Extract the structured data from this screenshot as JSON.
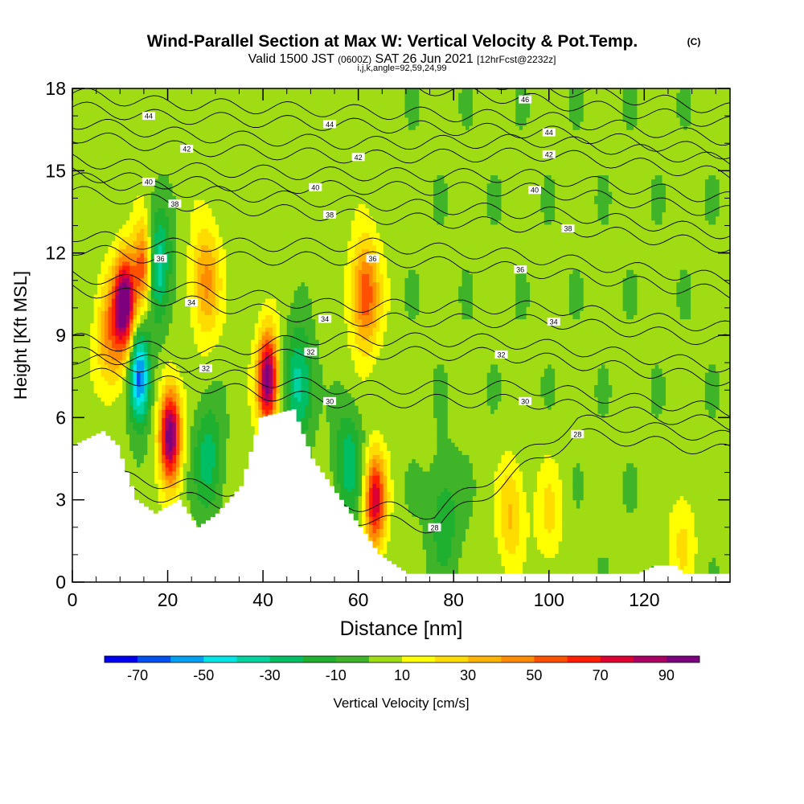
{
  "header": {
    "title": "Wind-Parallel Section at Max W: Vertical Velocity & Pot.Temp.",
    "title_unit": "(C)",
    "valid_prefix": "Valid 1500 JST",
    "valid_zulu": "(0600Z)",
    "valid_date": "SAT 26 Jun 2021",
    "forecast": "[12hrFcst@2232z]",
    "section_params": "i,j,k,angle=92,59,24,99"
  },
  "chart_data": {
    "type": "heatmap",
    "title": "Wind-Parallel Section at Max W: Vertical Velocity & Pot.Temp.",
    "xlabel": "Distance [nm]",
    "ylabel": "Height [Kft MSL]",
    "xlim": [
      0,
      138
    ],
    "ylim": [
      0,
      18
    ],
    "x_ticks": [
      0,
      20,
      40,
      60,
      80,
      100,
      120
    ],
    "y_ticks": [
      0,
      3,
      6,
      9,
      12,
      15,
      18
    ],
    "grid": false,
    "colorbar": {
      "label": "Vertical Velocity [cm/s]",
      "placement": "bottom",
      "tick_labels": [
        "-70",
        "-50",
        "-30",
        "-10",
        "10",
        "30",
        "50",
        "70",
        "90"
      ],
      "bounds": [
        -80,
        -70,
        -60,
        -50,
        -40,
        -30,
        -20,
        -10,
        0,
        10,
        20,
        30,
        40,
        50,
        60,
        70,
        80,
        90,
        100
      ],
      "colors": [
        "#0000f0",
        "#0050f0",
        "#00a0f0",
        "#00e6e6",
        "#00d2a0",
        "#00be64",
        "#20b030",
        "#40b428",
        "#a0dc14",
        "#ffff00",
        "#ffdc00",
        "#ffb400",
        "#ff8c00",
        "#ff5000",
        "#ff1e00",
        "#dc0032",
        "#aa0064",
        "#7d007d"
      ]
    },
    "cores": [
      {
        "x": 11,
        "y": 10.2,
        "w": 95,
        "description": "updraft"
      },
      {
        "x": 15,
        "y": 11.5,
        "w": 70,
        "description": "updraft"
      },
      {
        "x": 14,
        "y": 7.5,
        "w": -70,
        "description": "downdraft"
      },
      {
        "x": 20.5,
        "y": 5.4,
        "w": 95,
        "description": "updraft"
      },
      {
        "x": 17.5,
        "y": 11.5,
        "w": -50,
        "description": "downdraft"
      },
      {
        "x": 28,
        "y": 11.0,
        "w": 40,
        "description": "updraft"
      },
      {
        "x": 41,
        "y": 7.4,
        "w": 95,
        "description": "updraft"
      },
      {
        "x": 47.5,
        "y": 7.2,
        "w": -40,
        "description": "downdraft"
      },
      {
        "x": 58,
        "y": 4.4,
        "w": -30,
        "description": "downdraft"
      },
      {
        "x": 61.5,
        "y": 10.5,
        "w": 55,
        "description": "updraft"
      },
      {
        "x": 63.5,
        "y": 3.0,
        "w": 75,
        "description": "updraft"
      },
      {
        "x": 8,
        "y": 9.0,
        "w": 40,
        "description": "updraft"
      },
      {
        "x": 28.5,
        "y": 4.5,
        "w": -30,
        "description": "downdraft"
      },
      {
        "x": 78,
        "y": 2.3,
        "w": -20,
        "description": "downdraft"
      },
      {
        "x": 92,
        "y": 2.5,
        "w": 30,
        "description": "updraft"
      },
      {
        "x": 100,
        "y": 2.5,
        "w": 20,
        "description": "updraft"
      },
      {
        "x": 128,
        "y": 1.5,
        "w": 20,
        "description": "updraft"
      }
    ],
    "terrain_profile": [
      [
        0,
        5.0
      ],
      [
        6,
        5.5
      ],
      [
        9,
        5.0
      ],
      [
        13,
        3.0
      ],
      [
        17,
        2.5
      ],
      [
        22,
        3.0
      ],
      [
        26,
        2.0
      ],
      [
        30,
        2.5
      ],
      [
        35,
        3.5
      ],
      [
        39,
        6.0
      ],
      [
        46,
        6.3
      ],
      [
        50,
        4.5
      ],
      [
        58,
        2.5
      ],
      [
        64,
        1.0
      ],
      [
        70,
        0.3
      ],
      [
        80,
        0.3
      ],
      [
        118,
        0.3
      ],
      [
        122,
        0.6
      ],
      [
        126,
        0.6
      ],
      [
        128,
        0.3
      ],
      [
        138,
        0.3
      ]
    ],
    "theta_contour_labels": [
      {
        "text": "28",
        "x": 76,
        "y": 2.0
      },
      {
        "text": "28",
        "x": 106,
        "y": 5.4
      },
      {
        "text": "30",
        "x": 54,
        "y": 6.6
      },
      {
        "text": "30",
        "x": 95,
        "y": 6.6
      },
      {
        "text": "32",
        "x": 28,
        "y": 7.8
      },
      {
        "text": "32",
        "x": 50,
        "y": 8.4
      },
      {
        "text": "32",
        "x": 90,
        "y": 8.3
      },
      {
        "text": "34",
        "x": 25,
        "y": 10.2
      },
      {
        "text": "34",
        "x": 53,
        "y": 9.6
      },
      {
        "text": "34",
        "x": 101,
        "y": 9.5
      },
      {
        "text": "36",
        "x": 18.5,
        "y": 11.8
      },
      {
        "text": "36",
        "x": 63,
        "y": 11.8
      },
      {
        "text": "36",
        "x": 94,
        "y": 11.4
      },
      {
        "text": "38",
        "x": 21.5,
        "y": 13.8
      },
      {
        "text": "38",
        "x": 54,
        "y": 13.4
      },
      {
        "text": "38",
        "x": 104,
        "y": 12.9
      },
      {
        "text": "40",
        "x": 16,
        "y": 14.6
      },
      {
        "text": "40",
        "x": 51,
        "y": 14.4
      },
      {
        "text": "40",
        "x": 97,
        "y": 14.3
      },
      {
        "text": "42",
        "x": 24,
        "y": 15.8
      },
      {
        "text": "42",
        "x": 60,
        "y": 15.5
      },
      {
        "text": "42",
        "x": 100,
        "y": 15.6
      },
      {
        "text": "44",
        "x": 16,
        "y": 17.0
      },
      {
        "text": "44",
        "x": 54,
        "y": 16.7
      },
      {
        "text": "44",
        "x": 100,
        "y": 16.4
      },
      {
        "text": "46",
        "x": 95,
        "y": 17.6
      }
    ]
  }
}
